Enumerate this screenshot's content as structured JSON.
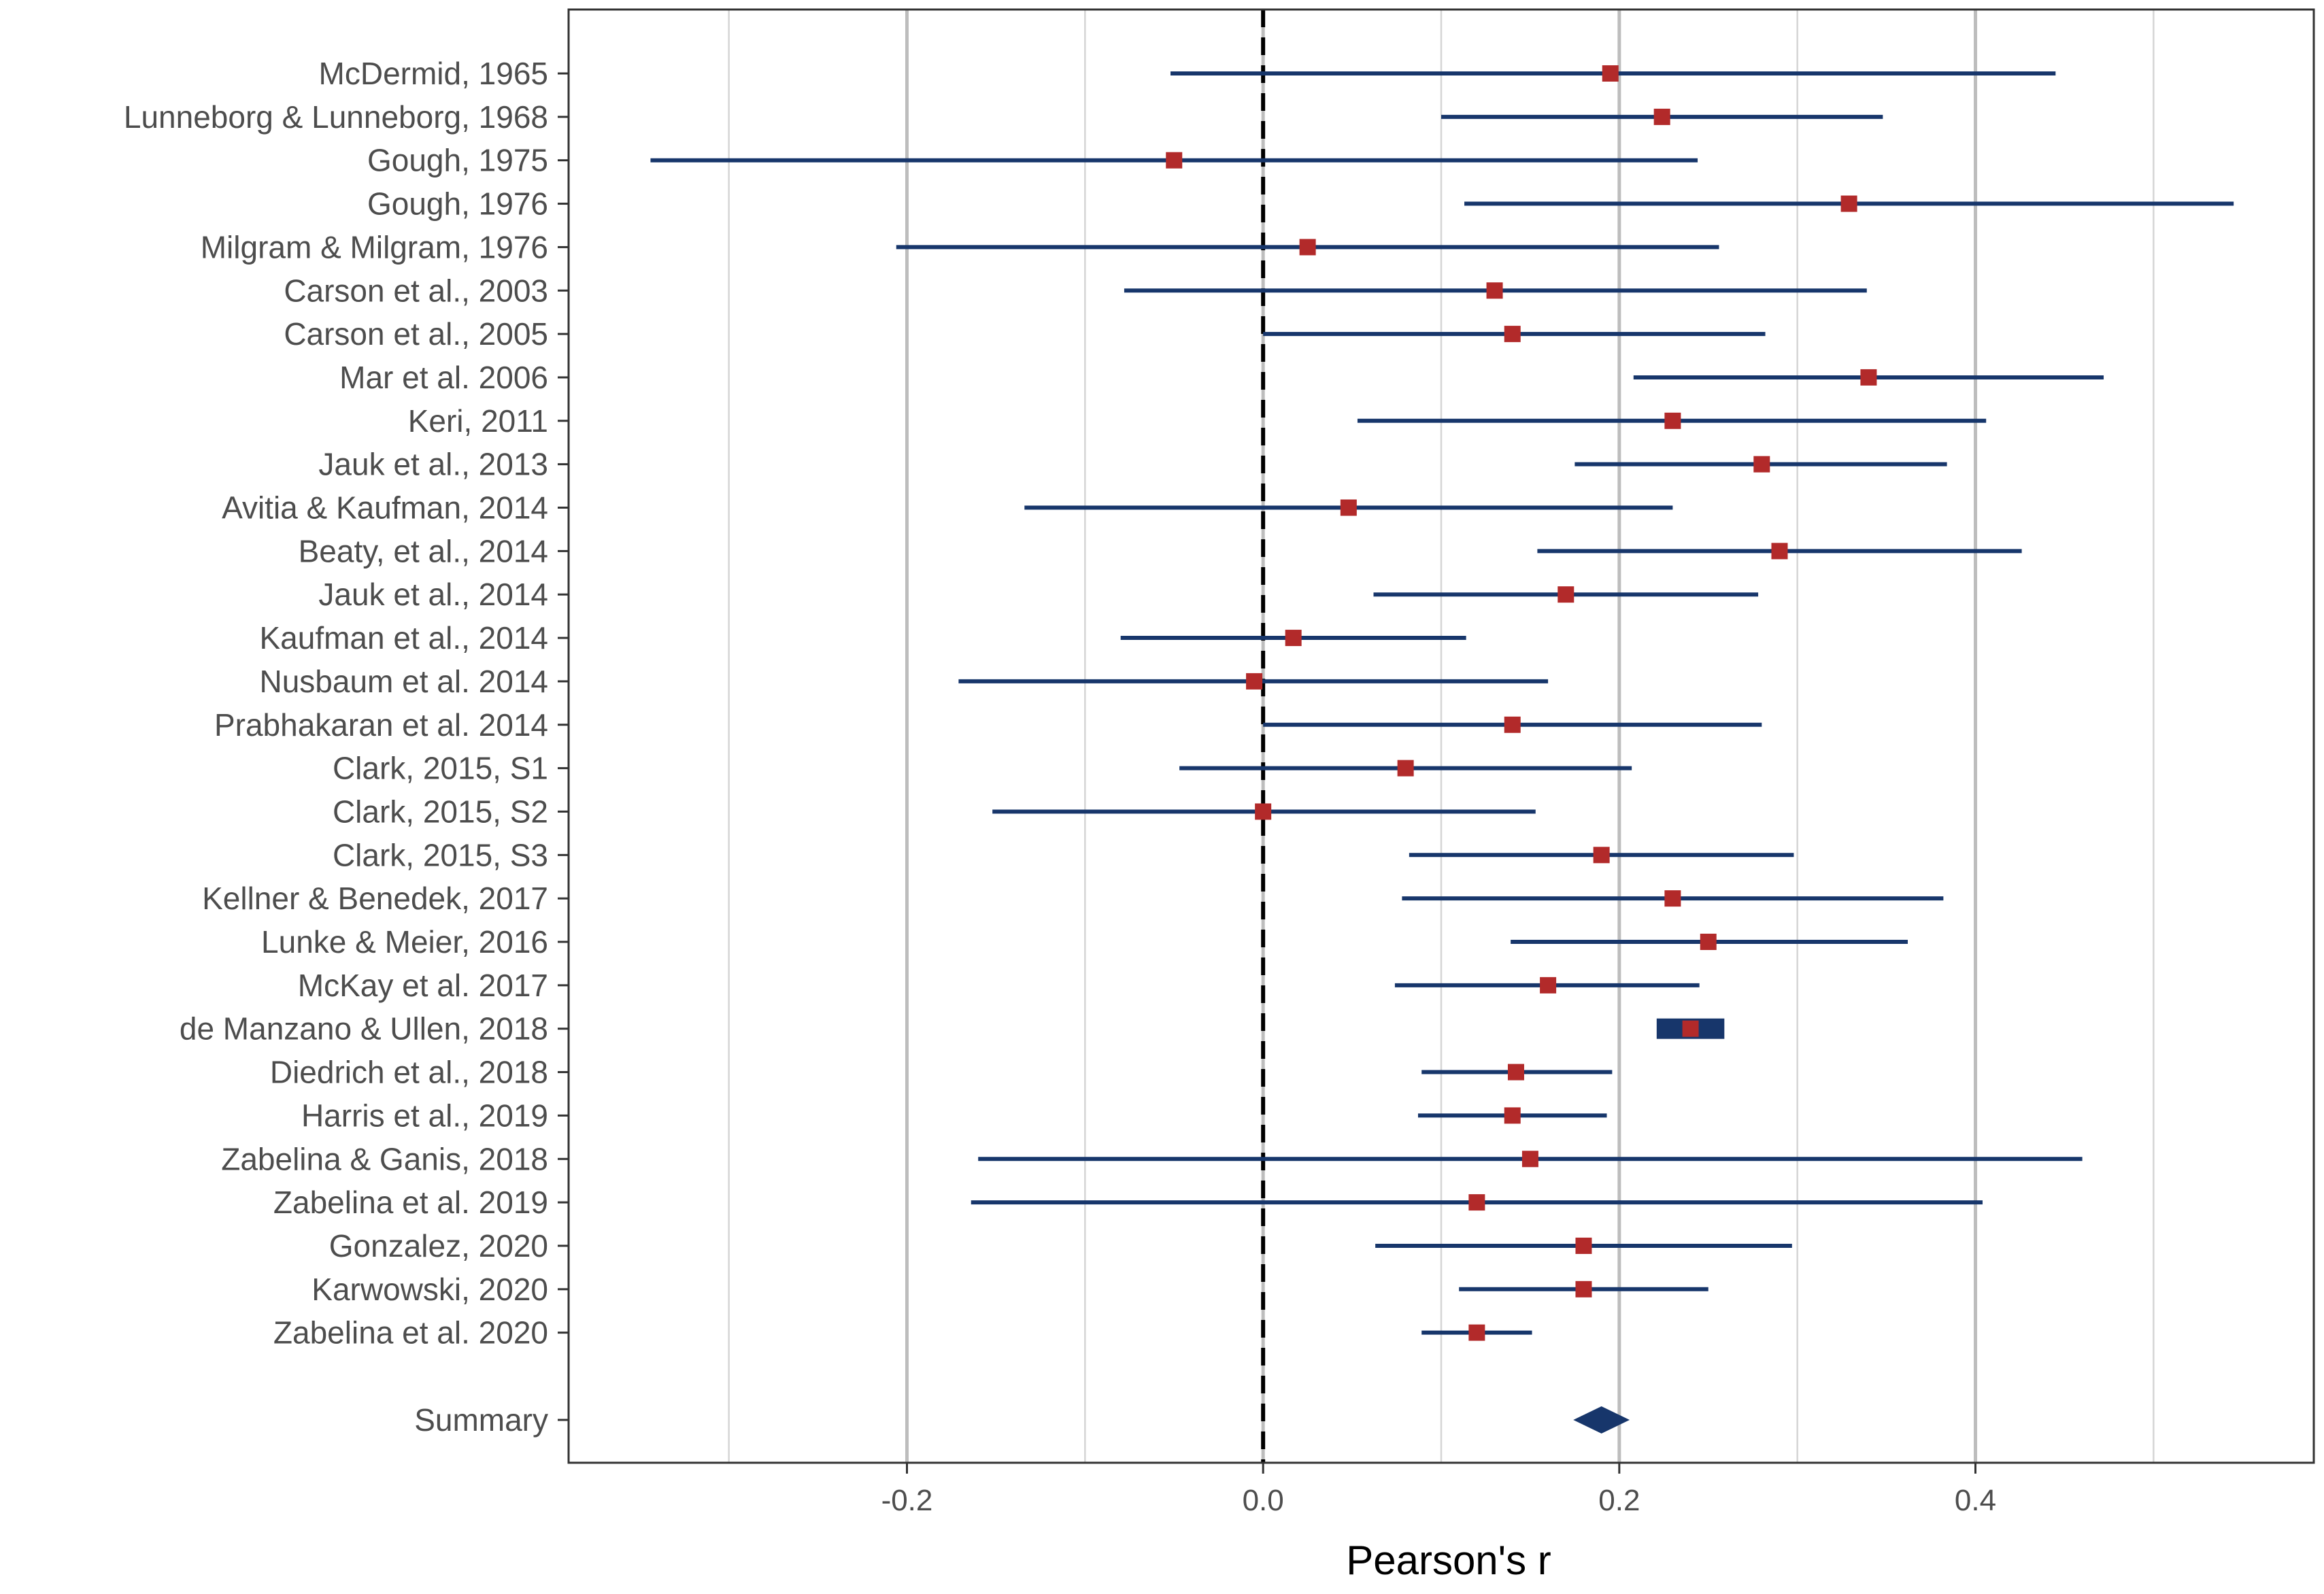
{
  "chart_data": {
    "type": "forest",
    "title": "",
    "xlabel": "Pearson's r",
    "ylabel": "",
    "xlim": [
      -0.39,
      0.59
    ],
    "x_ticks": [
      -0.2,
      0.0,
      0.2,
      0.4
    ],
    "x_tick_labels": [
      "-0.2",
      "0.0",
      "0.2",
      "0.4"
    ],
    "x_minor_gridlines": [
      -0.3,
      -0.1,
      0.1,
      0.3,
      0.5
    ],
    "reference_line": 0.0,
    "grid": true,
    "colors": {
      "interval": "#17366b",
      "point": "#b22a2a",
      "summary": "#17366b",
      "reference": "#000000",
      "grid_major": "#bdbdbd",
      "grid_minor": "#d5d5d5",
      "panel_border": "#333333"
    },
    "studies": [
      {
        "label": "McDermid, 1965",
        "r": 0.195,
        "lower": -0.052,
        "upper": 0.445
      },
      {
        "label": "Lunneborg  & Lunneborg, 1968",
        "r": 0.224,
        "lower": 0.1,
        "upper": 0.348
      },
      {
        "label": "Gough, 1975",
        "r": -0.05,
        "lower": -0.344,
        "upper": 0.244
      },
      {
        "label": "Gough, 1976",
        "r": 0.329,
        "lower": 0.113,
        "upper": 0.545
      },
      {
        "label": "Milgram & Milgram, 1976",
        "r": 0.025,
        "lower": -0.206,
        "upper": 0.256
      },
      {
        "label": "Carson et al., 2003",
        "r": 0.13,
        "lower": -0.078,
        "upper": 0.339
      },
      {
        "label": "Carson et al., 2005",
        "r": 0.14,
        "lower": 0.0,
        "upper": 0.282
      },
      {
        "label": "Mar et al. 2006",
        "r": 0.34,
        "lower": 0.208,
        "upper": 0.472
      },
      {
        "label": "Keri, 2011",
        "r": 0.23,
        "lower": 0.053,
        "upper": 0.406
      },
      {
        "label": "Jauk et al., 2013",
        "r": 0.28,
        "lower": 0.175,
        "upper": 0.384
      },
      {
        "label": "Avitia & Kaufman, 2014",
        "r": 0.048,
        "lower": -0.134,
        "upper": 0.23
      },
      {
        "label": "Beaty, et al., 2014",
        "r": 0.29,
        "lower": 0.154,
        "upper": 0.426
      },
      {
        "label": "Jauk et al., 2014",
        "r": 0.17,
        "lower": 0.062,
        "upper": 0.278
      },
      {
        "label": "Kaufman et al., 2014",
        "r": 0.017,
        "lower": -0.08,
        "upper": 0.114
      },
      {
        "label": "Nusbaum et al. 2014",
        "r": -0.005,
        "lower": -0.171,
        "upper": 0.16
      },
      {
        "label": "Prabhakaran et al. 2014",
        "r": 0.14,
        "lower": 0.0,
        "upper": 0.28
      },
      {
        "label": "Clark, 2015, S1",
        "r": 0.08,
        "lower": -0.047,
        "upper": 0.207
      },
      {
        "label": "Clark, 2015, S2",
        "r": 0.0,
        "lower": -0.152,
        "upper": 0.153
      },
      {
        "label": "Clark, 2015, S3",
        "r": 0.19,
        "lower": 0.082,
        "upper": 0.298
      },
      {
        "label": "Kellner & Benedek, 2017",
        "r": 0.23,
        "lower": 0.078,
        "upper": 0.382
      },
      {
        "label": "Lunke & Meier, 2016",
        "r": 0.25,
        "lower": 0.139,
        "upper": 0.362
      },
      {
        "label": "McKay et al. 2017",
        "r": 0.16,
        "lower": 0.074,
        "upper": 0.245
      },
      {
        "label": "de Manzano & Ullen, 2018",
        "r": 0.24,
        "lower": 0.221,
        "upper": 0.259
      },
      {
        "label": "Diedrich et al., 2018",
        "r": 0.142,
        "lower": 0.089,
        "upper": 0.196
      },
      {
        "label": "Harris et al., 2019",
        "r": 0.14,
        "lower": 0.087,
        "upper": 0.193
      },
      {
        "label": "Zabelina  & Ganis, 2018",
        "r": 0.15,
        "lower": -0.16,
        "upper": 0.46
      },
      {
        "label": "Zabelina et al. 2019",
        "r": 0.12,
        "lower": -0.164,
        "upper": 0.404
      },
      {
        "label": "Gonzalez, 2020",
        "r": 0.18,
        "lower": 0.063,
        "upper": 0.297
      },
      {
        "label": "Karwowski, 2020",
        "r": 0.18,
        "lower": 0.11,
        "upper": 0.25
      },
      {
        "label": "Zabelina et al. 2020",
        "r": 0.12,
        "lower": 0.089,
        "upper": 0.151
      }
    ],
    "summary": {
      "label": "Summary",
      "r": 0.19,
      "lower": 0.178,
      "upper": 0.202
    }
  }
}
